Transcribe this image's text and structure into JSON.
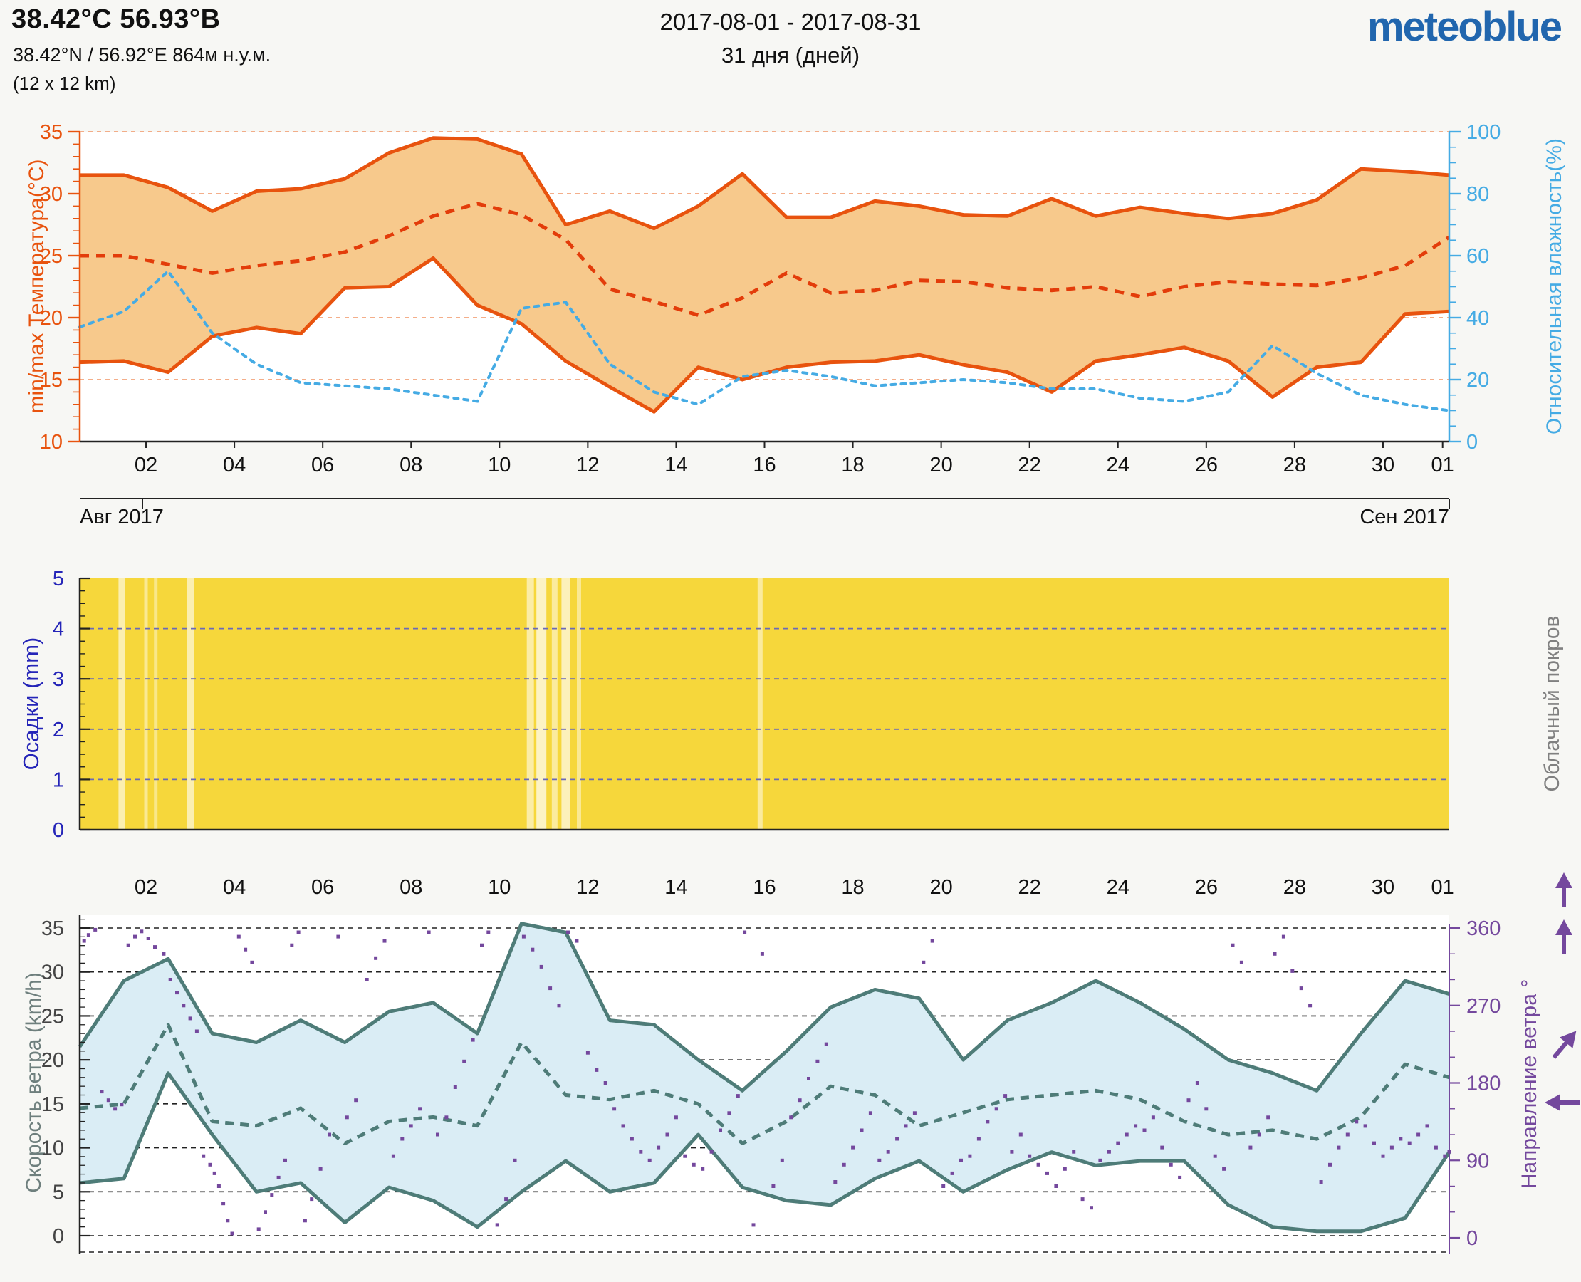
{
  "header": {
    "title": "38.42°C 56.93°В",
    "coords": "38.42°N / 56.92°E   864м н.у.м.",
    "resolution": "(12 x 12 km)",
    "date_range": "2017-08-01 - 2017-08-31",
    "duration": "31 дня (дней)",
    "logo": "meteoblue"
  },
  "axes": {
    "x_tick_labels": [
      "02",
      "04",
      "06",
      "08",
      "10",
      "12",
      "14",
      "16",
      "18",
      "20",
      "22",
      "24",
      "26",
      "28",
      "30",
      "01"
    ],
    "x_tick_days": [
      1.5,
      3.5,
      5.5,
      7.5,
      9.5,
      11.5,
      13.5,
      15.5,
      17.5,
      19.5,
      21.5,
      23.5,
      25.5,
      27.5,
      29.5,
      30.85
    ],
    "month_left": "Авг 2017",
    "month_right": "Сен 2017",
    "temp_title": "min/max Температура(°C)",
    "temp_ticks": [
      35,
      30,
      25,
      20,
      15,
      10
    ],
    "humidity_title": "Относительная влажность(%)",
    "humidity_ticks": [
      100,
      80,
      60,
      40,
      20,
      0
    ],
    "precip_title": "Осадки (mm)",
    "precip_ticks": [
      5,
      4,
      3,
      2,
      1,
      0
    ],
    "cloud_title": "Облачный покров",
    "wind_title": "Скорость ветра (km/h)",
    "wind_ticks": [
      35,
      30,
      25,
      20,
      15,
      10,
      5,
      0
    ],
    "dir_title": "Направление ветра °",
    "dir_ticks": [
      360,
      270,
      180,
      90,
      0
    ]
  },
  "colors": {
    "temp_line": "#e8530e",
    "temp_mean": "#e33c0a",
    "temp_band": "#f7c98c",
    "temp_grid": "#f2a379",
    "humidity": "#45abe4",
    "sun_fill": "#f6d73b",
    "precip_axis": "#2525b8",
    "precip_grid": "#6a6ab8",
    "wind_line": "#4e7c78",
    "wind_band": "#daedf5",
    "wind_text": "#444444",
    "direction": "#74489d",
    "axis_dark": "#222222",
    "logo_blue": "#2166ae",
    "background": "#f7f7f4"
  },
  "chart_data": [
    {
      "type": "line",
      "name": "temperature-and-humidity",
      "x_description": "days since 2017-08-01, one value per day Aug 1 .. Sep 1",
      "temp_ylim": [
        10,
        35
      ],
      "humidity_ylim": [
        0,
        100
      ],
      "grid_temp": [
        15,
        20,
        25,
        30,
        35
      ],
      "series": [
        {
          "name": "max_temp_c",
          "style": "solid",
          "values": [
            31.5,
            31.5,
            30.5,
            28.6,
            30.2,
            30.4,
            31.2,
            33.3,
            34.5,
            34.4,
            33.2,
            27.5,
            28.6,
            27.2,
            29.0,
            31.6,
            28.1,
            28.1,
            29.4,
            29.0,
            28.3,
            28.2,
            29.6,
            28.2,
            28.9,
            28.4,
            28.0,
            28.4,
            29.5,
            32.0,
            31.8,
            31.5
          ]
        },
        {
          "name": "mean_temp_c",
          "style": "dashed",
          "values": [
            25.0,
            25.0,
            24.3,
            23.6,
            24.2,
            24.6,
            25.3,
            26.6,
            28.2,
            29.2,
            28.3,
            26.3,
            22.3,
            21.3,
            20.2,
            21.6,
            23.6,
            22.0,
            22.2,
            23.0,
            22.9,
            22.4,
            22.2,
            22.5,
            21.7,
            22.5,
            22.9,
            22.7,
            22.6,
            23.2,
            24.2,
            26.5
          ]
        },
        {
          "name": "min_temp_c",
          "style": "solid",
          "values": [
            16.4,
            16.5,
            15.6,
            18.5,
            19.2,
            18.7,
            22.4,
            22.5,
            24.8,
            21.0,
            19.5,
            16.5,
            14.4,
            12.4,
            16.0,
            15.0,
            16.0,
            16.4,
            16.5,
            17.0,
            16.2,
            15.6,
            14.0,
            16.5,
            17.0,
            17.6,
            16.5,
            13.6,
            16.0,
            16.4,
            20.3,
            20.5
          ]
        },
        {
          "name": "relative_humidity_pct",
          "style": "dotted",
          "axis": "right",
          "values": [
            37,
            42,
            55,
            35,
            25,
            19,
            18,
            17,
            15,
            13,
            43,
            45,
            25,
            16,
            12,
            21,
            23,
            21,
            18,
            19,
            20,
            19,
            17,
            17,
            14,
            13,
            16,
            31,
            22,
            15,
            12,
            10
          ]
        }
      ]
    },
    {
      "type": "area",
      "name": "precipitation-and-cloud-cover",
      "ylim": [
        0,
        5
      ],
      "precip_mm_daily": [
        0,
        0,
        0,
        0,
        0,
        0,
        0,
        0,
        0,
        0,
        0,
        0,
        0,
        0,
        0,
        0,
        0,
        0,
        0,
        0,
        0,
        0,
        0,
        0,
        0,
        0,
        0,
        0,
        0,
        0,
        0,
        0
      ],
      "grid": [
        1,
        2,
        3,
        4
      ],
      "cloud_bands": [
        {
          "day": 0.95,
          "w": 9,
          "a": 0.6
        },
        {
          "day": 1.5,
          "w": 5,
          "a": 0.45
        },
        {
          "day": 1.72,
          "w": 5,
          "a": 0.4
        },
        {
          "day": 2.5,
          "w": 10,
          "a": 0.6
        },
        {
          "day": 10.2,
          "w": 10,
          "a": 0.55
        },
        {
          "day": 10.45,
          "w": 14,
          "a": 0.7
        },
        {
          "day": 10.75,
          "w": 8,
          "a": 0.5
        },
        {
          "day": 11.0,
          "w": 12,
          "a": 0.65
        },
        {
          "day": 11.3,
          "w": 6,
          "a": 0.45
        },
        {
          "day": 15.4,
          "w": 7,
          "a": 0.5
        }
      ]
    },
    {
      "type": "line",
      "name": "wind-speed-and-direction",
      "speed_ylim": [
        0,
        35
      ],
      "direction_ylim": [
        0,
        360
      ],
      "series": [
        {
          "name": "max_wind_kmh",
          "style": "solid",
          "values": [
            21.5,
            29.0,
            31.5,
            23.0,
            22.0,
            24.5,
            22.0,
            25.5,
            26.5,
            23.0,
            35.5,
            34.5,
            24.5,
            24.0,
            20.0,
            16.5,
            21.0,
            26.0,
            28.0,
            27.0,
            20.0,
            24.5,
            26.5,
            29.0,
            26.5,
            23.5,
            20.0,
            18.5,
            16.5,
            23.0,
            29.0,
            27.5
          ]
        },
        {
          "name": "mean_wind_kmh",
          "style": "dashed",
          "values": [
            14.5,
            15.0,
            24.0,
            13.0,
            12.5,
            14.5,
            10.5,
            13.0,
            13.5,
            12.5,
            22.0,
            16.0,
            15.5,
            16.5,
            15.0,
            10.5,
            13.0,
            17.0,
            16.0,
            12.5,
            14.0,
            15.5,
            16.0,
            16.5,
            15.5,
            13.0,
            11.5,
            12.0,
            11.0,
            13.5,
            19.5,
            18.0
          ]
        },
        {
          "name": "min_wind_kmh",
          "style": "solid",
          "values": [
            6.0,
            6.5,
            18.5,
            11.5,
            5.0,
            6.0,
            1.5,
            5.5,
            4.0,
            1.0,
            5.0,
            8.5,
            5.0,
            6.0,
            11.5,
            5.5,
            4.0,
            3.5,
            6.5,
            8.5,
            5.0,
            7.5,
            9.5,
            8.0,
            8.5,
            8.5,
            3.5,
            1.0,
            0.5,
            0.5,
            2.0,
            9.5
          ]
        }
      ],
      "direction_points": [
        [
          0.1,
          345
        ],
        [
          0.2,
          352
        ],
        [
          0.35,
          358
        ],
        [
          0.5,
          170
        ],
        [
          0.65,
          160
        ],
        [
          0.8,
          150
        ],
        [
          0.95,
          155
        ],
        [
          1.1,
          340
        ],
        [
          1.25,
          350
        ],
        [
          1.4,
          356
        ],
        [
          1.55,
          348
        ],
        [
          1.7,
          338
        ],
        [
          1.9,
          330
        ],
        [
          2.05,
          300
        ],
        [
          2.2,
          285
        ],
        [
          2.35,
          270
        ],
        [
          2.5,
          255
        ],
        [
          2.65,
          240
        ],
        [
          2.8,
          95
        ],
        [
          2.95,
          85
        ],
        [
          3.05,
          75
        ],
        [
          3.15,
          60
        ],
        [
          3.25,
          40
        ],
        [
          3.35,
          20
        ],
        [
          3.45,
          5
        ],
        [
          3.6,
          350
        ],
        [
          3.75,
          335
        ],
        [
          3.9,
          320
        ],
        [
          4.05,
          10
        ],
        [
          4.2,
          30
        ],
        [
          4.35,
          50
        ],
        [
          4.5,
          70
        ],
        [
          4.65,
          90
        ],
        [
          4.8,
          340
        ],
        [
          4.95,
          355
        ],
        [
          5.1,
          20
        ],
        [
          5.25,
          45
        ],
        [
          5.45,
          80
        ],
        [
          5.65,
          120
        ],
        [
          5.85,
          350
        ],
        [
          6.05,
          140
        ],
        [
          6.25,
          160
        ],
        [
          6.5,
          300
        ],
        [
          6.7,
          325
        ],
        [
          6.9,
          345
        ],
        [
          7.1,
          95
        ],
        [
          7.3,
          115
        ],
        [
          7.5,
          130
        ],
        [
          7.7,
          150
        ],
        [
          7.9,
          355
        ],
        [
          8.1,
          120
        ],
        [
          8.3,
          140
        ],
        [
          8.5,
          175
        ],
        [
          8.7,
          205
        ],
        [
          8.9,
          230
        ],
        [
          9.1,
          340
        ],
        [
          9.25,
          355
        ],
        [
          9.45,
          15
        ],
        [
          9.65,
          45
        ],
        [
          9.85,
          90
        ],
        [
          10.05,
          350
        ],
        [
          10.25,
          335
        ],
        [
          10.45,
          315
        ],
        [
          10.65,
          290
        ],
        [
          10.85,
          270
        ],
        [
          11.05,
          355
        ],
        [
          11.25,
          345
        ],
        [
          11.5,
          215
        ],
        [
          11.7,
          195
        ],
        [
          11.9,
          180
        ],
        [
          12.1,
          150
        ],
        [
          12.3,
          130
        ],
        [
          12.5,
          115
        ],
        [
          12.7,
          100
        ],
        [
          12.9,
          90
        ],
        [
          13.1,
          105
        ],
        [
          13.3,
          120
        ],
        [
          13.5,
          140
        ],
        [
          13.7,
          95
        ],
        [
          13.9,
          85
        ],
        [
          14.1,
          80
        ],
        [
          14.3,
          100
        ],
        [
          14.5,
          125
        ],
        [
          14.7,
          145
        ],
        [
          14.9,
          165
        ],
        [
          15.05,
          355
        ],
        [
          15.25,
          15
        ],
        [
          15.45,
          330
        ],
        [
          15.7,
          60
        ],
        [
          15.9,
          90
        ],
        [
          16.1,
          140
        ],
        [
          16.3,
          160
        ],
        [
          16.5,
          185
        ],
        [
          16.7,
          205
        ],
        [
          16.9,
          225
        ],
        [
          17.1,
          65
        ],
        [
          17.3,
          85
        ],
        [
          17.5,
          105
        ],
        [
          17.7,
          125
        ],
        [
          17.9,
          145
        ],
        [
          18.1,
          90
        ],
        [
          18.3,
          100
        ],
        [
          18.5,
          115
        ],
        [
          18.7,
          130
        ],
        [
          18.9,
          145
        ],
        [
          19.1,
          320
        ],
        [
          19.3,
          345
        ],
        [
          19.55,
          60
        ],
        [
          19.75,
          75
        ],
        [
          19.95,
          90
        ],
        [
          20.15,
          95
        ],
        [
          20.35,
          115
        ],
        [
          20.55,
          135
        ],
        [
          20.75,
          150
        ],
        [
          20.95,
          165
        ],
        [
          21.1,
          100
        ],
        [
          21.3,
          120
        ],
        [
          21.5,
          95
        ],
        [
          21.7,
          85
        ],
        [
          21.9,
          75
        ],
        [
          22.1,
          60
        ],
        [
          22.3,
          80
        ],
        [
          22.5,
          100
        ],
        [
          22.7,
          45
        ],
        [
          22.9,
          35
        ],
        [
          23.1,
          90
        ],
        [
          23.3,
          100
        ],
        [
          23.5,
          110
        ],
        [
          23.7,
          120
        ],
        [
          23.9,
          130
        ],
        [
          24.1,
          125
        ],
        [
          24.3,
          140
        ],
        [
          24.5,
          105
        ],
        [
          24.7,
          85
        ],
        [
          24.9,
          70
        ],
        [
          25.1,
          160
        ],
        [
          25.3,
          180
        ],
        [
          25.5,
          150
        ],
        [
          25.7,
          95
        ],
        [
          25.9,
          80
        ],
        [
          26.1,
          340
        ],
        [
          26.3,
          320
        ],
        [
          26.5,
          105
        ],
        [
          26.7,
          120
        ],
        [
          26.9,
          140
        ],
        [
          27.05,
          330
        ],
        [
          27.25,
          350
        ],
        [
          27.45,
          310
        ],
        [
          27.65,
          290
        ],
        [
          27.85,
          270
        ],
        [
          28.1,
          65
        ],
        [
          28.3,
          85
        ],
        [
          28.5,
          105
        ],
        [
          28.7,
          120
        ],
        [
          28.9,
          135
        ],
        [
          29.1,
          130
        ],
        [
          29.3,
          110
        ],
        [
          29.5,
          95
        ],
        [
          29.7,
          105
        ],
        [
          29.9,
          115
        ],
        [
          30.1,
          110
        ],
        [
          30.3,
          120
        ],
        [
          30.5,
          130
        ],
        [
          30.7,
          105
        ],
        [
          30.9,
          95
        ],
        [
          31,
          100
        ]
      ]
    }
  ],
  "wind_arrows": [
    "up",
    "up",
    "up-right",
    "left"
  ]
}
